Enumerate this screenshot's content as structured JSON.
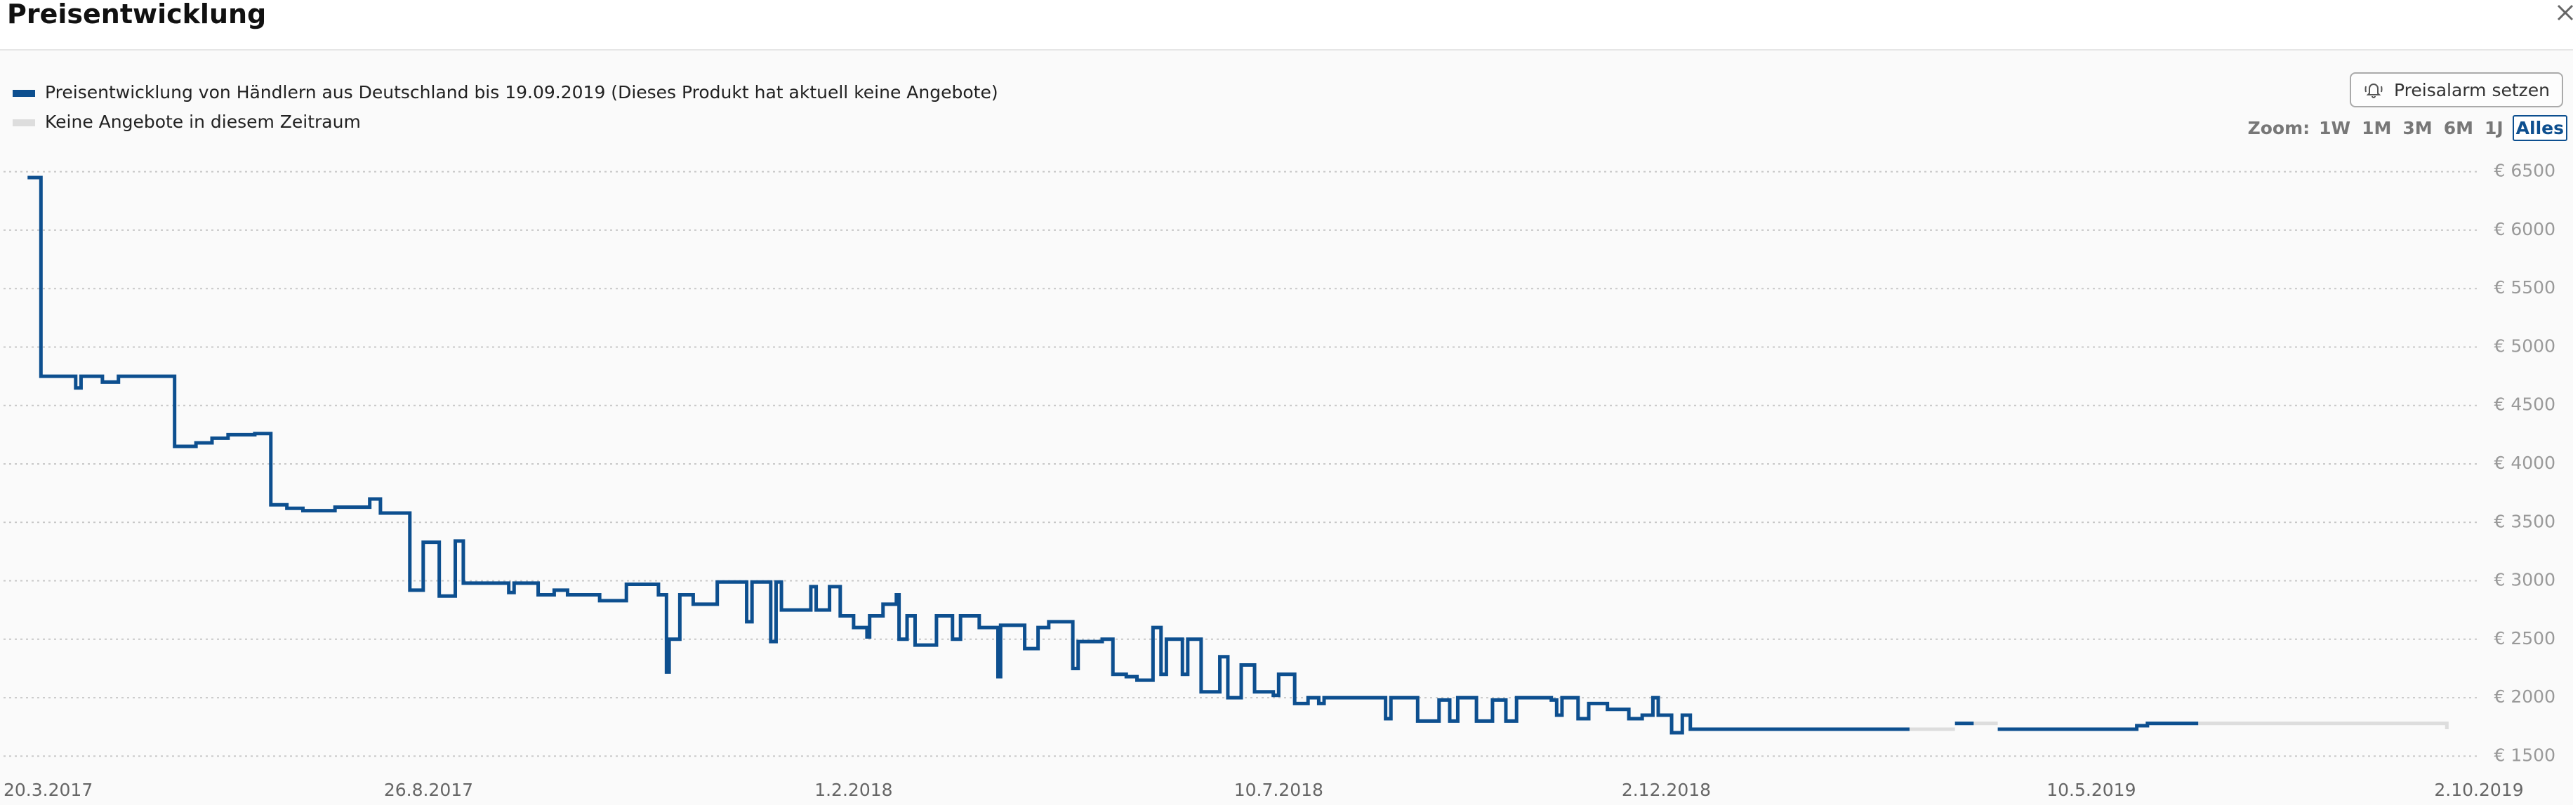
{
  "header": {
    "title": "Preisentwicklung"
  },
  "controls": {
    "alarm_button": "Preisalarm setzen",
    "zoom_label": "Zoom:",
    "zoom_options": [
      "1W",
      "1M",
      "3M",
      "6M",
      "1J",
      "Alles"
    ],
    "zoom_selected": 5
  },
  "chart_data": {
    "type": "line",
    "step": true,
    "legend": "top-left",
    "grid": true,
    "xlim": [
      "2017-03-20",
      "2019-10-02"
    ],
    "xticks": [
      {
        "value": "2017-03-20",
        "label": "20.3.2017"
      },
      {
        "value": "2017-08-26",
        "label": "26.8.2017"
      },
      {
        "value": "2018-02-01",
        "label": "1.2.2018"
      },
      {
        "value": "2018-07-10",
        "label": "10.7.2018"
      },
      {
        "value": "2018-12-02",
        "label": "2.12.2018"
      },
      {
        "value": "2019-05-10",
        "label": "10.5.2019"
      },
      {
        "value": "2019-10-02",
        "label": "2.10.2019"
      }
    ],
    "ylim": [
      1400,
      6600
    ],
    "yticks": [
      {
        "value": 1500,
        "label": "€ 1500"
      },
      {
        "value": 2000,
        "label": "€ 2000"
      },
      {
        "value": 2500,
        "label": "€ 2500"
      },
      {
        "value": 3000,
        "label": "€ 3000"
      },
      {
        "value": 3500,
        "label": "€ 3500"
      },
      {
        "value": 4000,
        "label": "€ 4000"
      },
      {
        "value": 4500,
        "label": "€ 4500"
      },
      {
        "value": 5000,
        "label": "€ 5000"
      },
      {
        "value": 5500,
        "label": "€ 5500"
      },
      {
        "value": 6000,
        "label": "€ 6000"
      },
      {
        "value": 6500,
        "label": "€ 6500"
      }
    ],
    "series": [
      {
        "name": "Preisentwicklung von Händlern aus Deutschland bis 19.09.2019 (Dieses Produkt hat aktuell keine Angebote)",
        "color": "#0d4f8f",
        "x": [
          "2017-03-29",
          "2017-04-03",
          "2017-04-16",
          "2017-04-18",
          "2017-04-26",
          "2017-05-02",
          "2017-05-23",
          "2017-05-31",
          "2017-06-06",
          "2017-06-12",
          "2017-06-22",
          "2017-06-28",
          "2017-07-04",
          "2017-07-10",
          "2017-07-22",
          "2017-08-04",
          "2017-08-08",
          "2017-08-19",
          "2017-08-24",
          "2017-08-30",
          "2017-09-05",
          "2017-09-08",
          "2017-09-25",
          "2017-09-27",
          "2017-10-06",
          "2017-10-12",
          "2017-10-17",
          "2017-10-29",
          "2017-11-08",
          "2017-11-20",
          "2017-11-23",
          "2017-11-24",
          "2017-11-28",
          "2017-12-03",
          "2017-12-12",
          "2017-12-23",
          "2017-12-25",
          "2018-01-01",
          "2018-01-03",
          "2018-01-05",
          "2018-01-16",
          "2018-01-18",
          "2018-01-23",
          "2018-01-27",
          "2018-02-01",
          "2018-02-06",
          "2018-02-07",
          "2018-02-12",
          "2018-02-17",
          "2018-02-18",
          "2018-02-21",
          "2018-02-24",
          "2018-03-04",
          "2018-03-10",
          "2018-03-13",
          "2018-03-20",
          "2018-03-27",
          "2018-03-28",
          "2018-04-06",
          "2018-04-11",
          "2018-04-15",
          "2018-04-24",
          "2018-04-26",
          "2018-05-05",
          "2018-05-09",
          "2018-05-14",
          "2018-05-18",
          "2018-05-24",
          "2018-05-27",
          "2018-05-29",
          "2018-06-04",
          "2018-06-06",
          "2018-06-11",
          "2018-06-18",
          "2018-06-21",
          "2018-06-26",
          "2018-07-01",
          "2018-07-08",
          "2018-07-10",
          "2018-07-16",
          "2018-07-21",
          "2018-07-25",
          "2018-07-27",
          "2018-08-19",
          "2018-08-21",
          "2018-08-31",
          "2018-09-08",
          "2018-09-12",
          "2018-09-15",
          "2018-09-22",
          "2018-09-28",
          "2018-10-03",
          "2018-10-07",
          "2018-10-20",
          "2018-10-22",
          "2018-10-24",
          "2018-10-30",
          "2018-11-03",
          "2018-11-10",
          "2018-11-18",
          "2018-11-23",
          "2018-11-27",
          "2018-11-29",
          "2018-12-04",
          "2018-12-08",
          "2018-12-11",
          "2019-03-03",
          "2019-03-10",
          "2019-03-20",
          "2019-03-27",
          "2019-04-01",
          "2019-04-05",
          "2019-05-27",
          "2019-05-31",
          "2019-06-19"
        ],
        "values": [
          6450,
          4750,
          4650,
          4750,
          4700,
          4750,
          4150,
          4180,
          4220,
          4250,
          4260,
          3650,
          3620,
          3600,
          3630,
          3700,
          3580,
          2920,
          3330,
          2870,
          3340,
          2980,
          2900,
          2980,
          2880,
          2920,
          2880,
          2830,
          2970,
          2880,
          2220,
          2500,
          2880,
          2800,
          2990,
          2650,
          2990,
          2480,
          2990,
          2750,
          2950,
          2750,
          2950,
          2700,
          2600,
          2520,
          2700,
          2800,
          2880,
          2500,
          2700,
          2450,
          2700,
          2500,
          2700,
          2600,
          2180,
          2620,
          2420,
          2600,
          2650,
          2250,
          2480,
          2500,
          2200,
          2180,
          2150,
          2600,
          2200,
          2500,
          2200,
          2500,
          2050,
          2350,
          2000,
          2280,
          2050,
          2020,
          2200,
          1950,
          2000,
          1950,
          2000,
          1820,
          2000,
          1800,
          1980,
          1800,
          2000,
          1800,
          1980,
          1800,
          2000,
          1980,
          1850,
          2000,
          1820,
          1950,
          1900,
          1820,
          1850,
          2000,
          1850,
          1700,
          1850,
          1730,
          1730,
          null,
          1780,
          1780,
          null,
          1730,
          1760,
          1780,
          1780
        ]
      },
      {
        "name": "Keine Angebote in diesem Zeitraum",
        "color": "#dddddd",
        "x": [
          "2019-03-03",
          "2019-03-20",
          "2019-03-25",
          "2019-03-27",
          "2019-04-05",
          "2019-05-01",
          "2019-06-19",
          "2019-09-18",
          "2019-09-20"
        ],
        "values": [
          1730,
          1730,
          null,
          1780,
          1780,
          null,
          1780,
          1780,
          1730
        ]
      }
    ]
  }
}
